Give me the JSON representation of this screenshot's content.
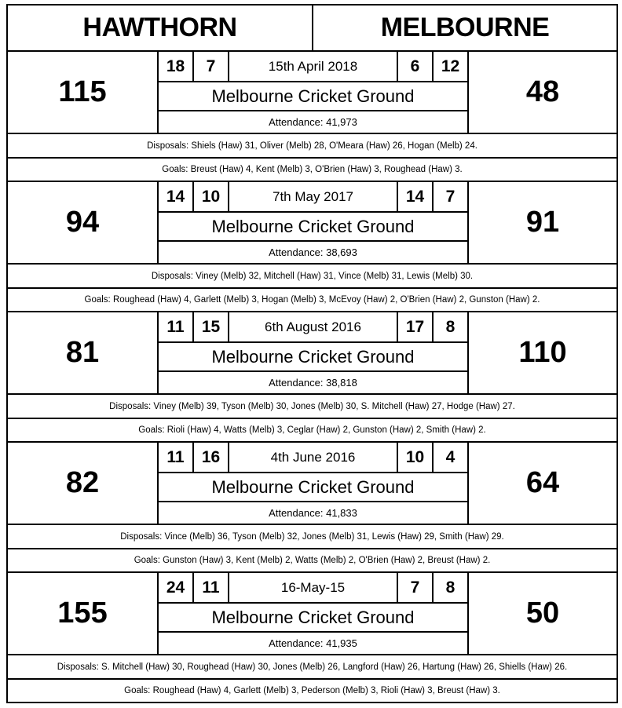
{
  "home_team": "HAWTHORN",
  "away_team": "MELBOURNE",
  "matches": [
    {
      "home_score": "115",
      "home_goals": "18",
      "home_behinds": "7",
      "date": "15th April 2018",
      "away_goals": "6",
      "away_behinds": "12",
      "away_score": "48",
      "venue": "Melbourne Cricket Ground",
      "attendance": "Attendance: 41,973",
      "disposals": "Disposals: Shiels (Haw) 31, Oliver (Melb) 28, O'Meara (Haw) 26, Hogan (Melb) 24.",
      "goals": "Goals:  Breust (Haw) 4, Kent (Melb) 3, O'Brien (Haw) 3, Roughead (Haw) 3."
    },
    {
      "home_score": "94",
      "home_goals": "14",
      "home_behinds": "10",
      "date": "7th May 2017",
      "away_goals": "14",
      "away_behinds": "7",
      "away_score": "91",
      "venue": "Melbourne Cricket Ground",
      "attendance": "Attendance: 38,693",
      "disposals": "Disposals: Viney (Melb) 32, Mitchell (Haw) 31, Vince (Melb) 31, Lewis (Melb) 30.",
      "goals": "Goals: Roughead (Haw) 4, Garlett (Melb) 3, Hogan (Melb) 3, McEvoy (Haw) 2, O'Brien (Haw) 2, Gunston (Haw) 2."
    },
    {
      "home_score": "81",
      "home_goals": "11",
      "home_behinds": "15",
      "date": "6th August 2016",
      "away_goals": "17",
      "away_behinds": "8",
      "away_score": "110",
      "venue": "Melbourne Cricket Ground",
      "attendance": "Attendance: 38,818",
      "disposals": "Disposals: Viney (Melb) 39, Tyson (Melb) 30, Jones (Melb) 30, S. Mitchell (Haw) 27, Hodge (Haw) 27.",
      "goals": "Goals: Rioli (Haw) 4, Watts (Melb) 3, Ceglar (Haw) 2, Gunston (Haw) 2, Smith (Haw) 2."
    },
    {
      "home_score": "82",
      "home_goals": "11",
      "home_behinds": "16",
      "date": "4th June 2016",
      "away_goals": "10",
      "away_behinds": "4",
      "away_score": "64",
      "venue": "Melbourne Cricket Ground",
      "attendance": "Attendance: 41,833",
      "disposals": "Disposals: Vince (Melb) 36, Tyson (Melb) 32, Jones (Melb) 31, Lewis (Haw) 29, Smith (Haw) 29.",
      "goals": "Goals: Gunston (Haw) 3, Kent (Melb) 2, Watts (Melb) 2, O'Brien (Haw) 2, Breust (Haw) 2."
    },
    {
      "home_score": "155",
      "home_goals": "24",
      "home_behinds": "11",
      "date": "16-May-15",
      "away_goals": "7",
      "away_behinds": "8",
      "away_score": "50",
      "venue": "Melbourne Cricket Ground",
      "attendance": "Attendance: 41,935",
      "disposals": "Disposals: S. Mitchell (Haw) 30, Roughead (Haw) 30, Jones (Melb) 26, Langford (Haw) 26, Hartung (Haw) 26, Shiells (Haw) 26.",
      "goals": "Goals: Roughead (Haw) 4, Garlett (Melb) 3, Pederson (Melb) 3, Rioli (Haw) 3, Breust (Haw) 3."
    }
  ]
}
